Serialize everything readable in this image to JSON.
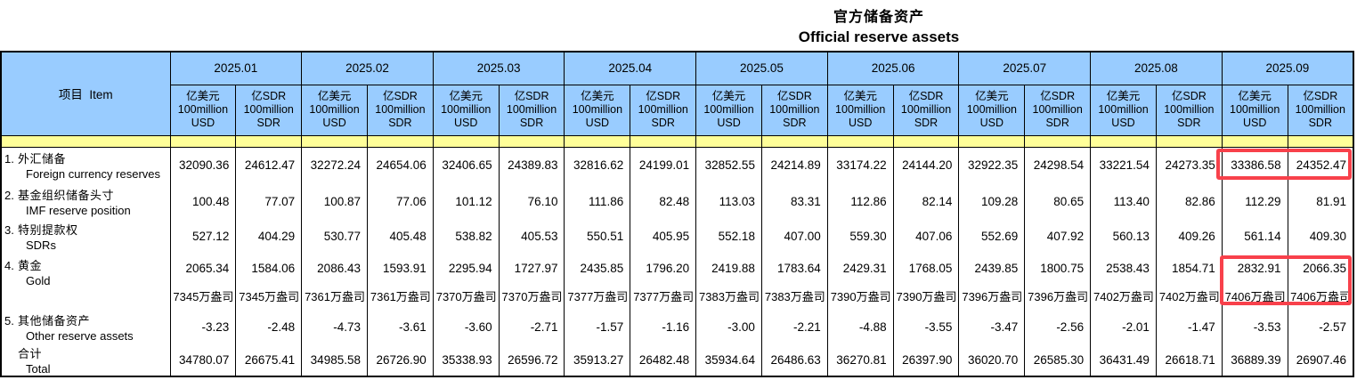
{
  "title": {
    "zh": "官方储备资产",
    "en": "Official reserve assets"
  },
  "colors": {
    "header_blue": "#99CCFF",
    "band_yellow": "#FFFF99",
    "highlight_red": "#F8414B"
  },
  "table": {
    "item_header": "项目  Item",
    "months": [
      "2025.01",
      "2025.02",
      "2025.03",
      "2025.04",
      "2025.05",
      "2025.06",
      "2025.07",
      "2025.08",
      "2025.09"
    ],
    "subheader": {
      "usd": "亿美元\n100million\nUSD",
      "sdr": "亿SDR\n100million\nSDR"
    },
    "rows": [
      {
        "no": "1.",
        "zh": "外汇储备",
        "en": "Foreign currency reserves",
        "values": [
          "32090.36",
          "24612.47",
          "32272.24",
          "24654.06",
          "32406.65",
          "24389.83",
          "32816.62",
          "24199.01",
          "32852.55",
          "24214.89",
          "33174.22",
          "24144.20",
          "32922.35",
          "24298.54",
          "33221.54",
          "24273.35",
          "33386.58",
          "24352.47"
        ]
      },
      {
        "no": "2.",
        "zh": "基金组织储备头寸",
        "en": "IMF reserve position",
        "values": [
          "100.48",
          "77.07",
          "100.87",
          "77.06",
          "101.12",
          "76.10",
          "111.86",
          "82.48",
          "113.03",
          "83.31",
          "112.86",
          "82.14",
          "109.28",
          "80.65",
          "113.40",
          "82.86",
          "112.29",
          "81.91"
        ]
      },
      {
        "no": "3.",
        "zh": "特别提款权",
        "en": "SDRs",
        "values": [
          "527.12",
          "404.29",
          "530.77",
          "405.48",
          "538.82",
          "405.53",
          "550.51",
          "405.95",
          "552.18",
          "407.00",
          "559.30",
          "407.06",
          "552.69",
          "407.92",
          "560.13",
          "409.26",
          "561.14",
          "409.30"
        ]
      },
      {
        "no": "4.",
        "zh": "黄金",
        "en": "Gold",
        "values": [
          "2065.34",
          "1584.06",
          "2086.43",
          "1593.91",
          "2295.94",
          "1727.97",
          "2435.85",
          "1796.20",
          "2419.88",
          "1783.64",
          "2429.31",
          "1768.05",
          "2439.85",
          "1800.75",
          "2538.43",
          "1854.71",
          "2832.91",
          "2066.35"
        ]
      },
      {
        "no": "",
        "zh": "",
        "en": "",
        "values": [
          "7345万盎司",
          "7345万盎司",
          "7361万盎司",
          "7361万盎司",
          "7370万盎司",
          "7370万盎司",
          "7377万盎司",
          "7377万盎司",
          "7383万盎司",
          "7383万盎司",
          "7390万盎司",
          "7390万盎司",
          "7396万盎司",
          "7396万盎司",
          "7402万盎司",
          "7402万盎司",
          "7406万盎司",
          "7406万盎司"
        ]
      },
      {
        "no": "5.",
        "zh": "其他储备资产",
        "en": "Other reserve assets",
        "values": [
          "-3.23",
          "-2.48",
          "-4.73",
          "-3.61",
          "-3.60",
          "-2.71",
          "-1.57",
          "-1.16",
          "-3.00",
          "-2.21",
          "-4.88",
          "-3.55",
          "-3.47",
          "-2.56",
          "-2.01",
          "-1.47",
          "-3.53",
          "-2.57"
        ]
      },
      {
        "no": "",
        "zh": "合计",
        "en": "Total",
        "values": [
          "34780.07",
          "26675.41",
          "34985.58",
          "26726.90",
          "35338.93",
          "26596.72",
          "35913.27",
          "26482.48",
          "35934.64",
          "26486.63",
          "36270.81",
          "26397.90",
          "36020.70",
          "26585.30",
          "36431.49",
          "26618.71",
          "36889.39",
          "26907.46"
        ]
      }
    ]
  },
  "highlights": [
    {
      "target": "foreign-currency-reserves-2025.09"
    },
    {
      "target": "gold-2025.09"
    }
  ]
}
